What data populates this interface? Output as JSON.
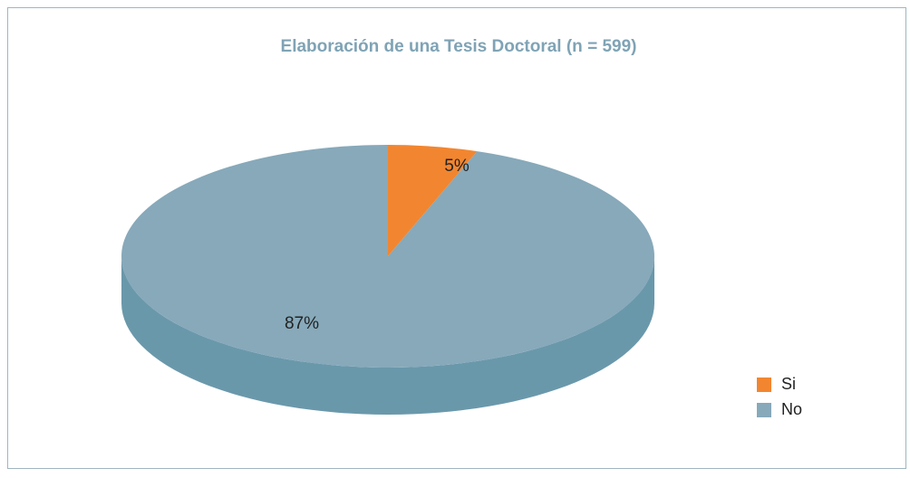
{
  "chart_data": {
    "type": "pie",
    "title": "Elaboración de una Tesis Doctoral (n = 599)",
    "categories": [
      "Si",
      "No"
    ],
    "values": [
      5,
      87
    ],
    "value_labels": [
      "5%",
      "87%"
    ],
    "colors": [
      "#f28630",
      "#87a9ba"
    ],
    "side_colors": [
      "#d9742a",
      "#6a98ab"
    ],
    "legend": "right"
  }
}
